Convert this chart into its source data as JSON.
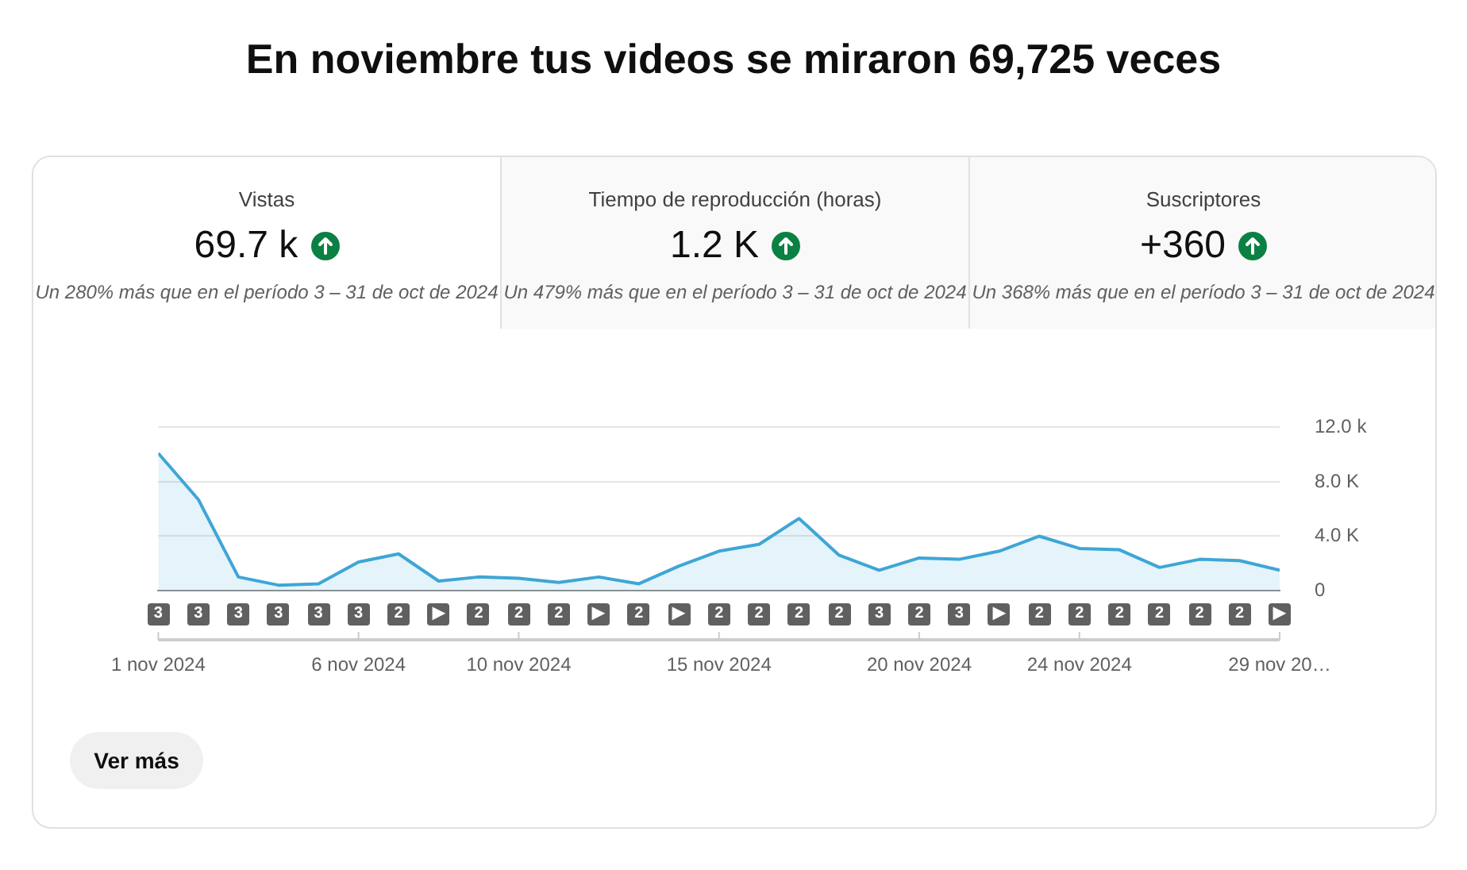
{
  "chart_data": {
    "type": "area",
    "title": "En noviembre tus videos se miraron 69,725 veces",
    "x": [
      "2024-11-01",
      "2024-11-02",
      "2024-11-03",
      "2024-11-04",
      "2024-11-05",
      "2024-11-06",
      "2024-11-07",
      "2024-11-08",
      "2024-11-09",
      "2024-11-10",
      "2024-11-11",
      "2024-11-12",
      "2024-11-13",
      "2024-11-14",
      "2024-11-15",
      "2024-11-16",
      "2024-11-17",
      "2024-11-18",
      "2024-11-19",
      "2024-11-20",
      "2024-11-21",
      "2024-11-22",
      "2024-11-23",
      "2024-11-24",
      "2024-11-25",
      "2024-11-26",
      "2024-11-27",
      "2024-11-28",
      "2024-11-29"
    ],
    "series": [
      {
        "color": "#3ea6d6",
        "values": [
          10100,
          6700,
          1000,
          400,
          500,
          2100,
          2700,
          700,
          1000,
          900,
          600,
          1000,
          500,
          1800,
          2900,
          3400,
          5300,
          2600,
          1500,
          2400,
          2300,
          2900,
          4000,
          3100,
          3000,
          1700,
          2300,
          2200,
          1500
        ]
      }
    ],
    "xlim": [
      "2024-11-01",
      "2024-11-29"
    ],
    "xticks": [
      {
        "value": "2024-11-01",
        "label": "1 nov 2024"
      },
      {
        "value": "2024-11-06",
        "label": "6 nov 2024"
      },
      {
        "value": "2024-11-10",
        "label": "10 nov 2024"
      },
      {
        "value": "2024-11-15",
        "label": "15 nov 2024"
      },
      {
        "value": "2024-11-20",
        "label": "20 nov 2024"
      },
      {
        "value": "2024-11-24",
        "label": "24 nov 2024"
      },
      {
        "value": "2024-11-29",
        "label": "29 nov 20…"
      }
    ],
    "ylim": [
      0,
      12000
    ],
    "yticks": [
      0,
      {
        "value": 4000,
        "label": "4.0 K"
      },
      {
        "value": 8000,
        "label": "8.0 K"
      },
      {
        "value": 12000,
        "label": "12.0 k"
      }
    ],
    "grid": "y",
    "legend": false,
    "marker": "none",
    "line_style": "solid",
    "annotations": [
      "Vistas",
      "69.7 k",
      "Un 280% más que en el período 3 – 31 de oct de 2024",
      "Tiempo de reproducción (horas)",
      "1.2 K",
      "Un 479% más que en el período 3 – 31 de oct de 2024",
      "Suscriptores",
      "+360",
      "Un 368% más que en el período 3 – 31 de oct de 2024",
      "Ver más",
      "3",
      "3",
      "3",
      "3",
      "3",
      "3",
      "2",
      "▶",
      "2",
      "2",
      "2",
      "▶",
      "2",
      "▶",
      "2",
      "2",
      "2",
      "2",
      "3",
      "2",
      "3",
      "▶",
      "2",
      "2",
      "2",
      "2",
      "2",
      "2",
      "▶"
    ]
  }
}
